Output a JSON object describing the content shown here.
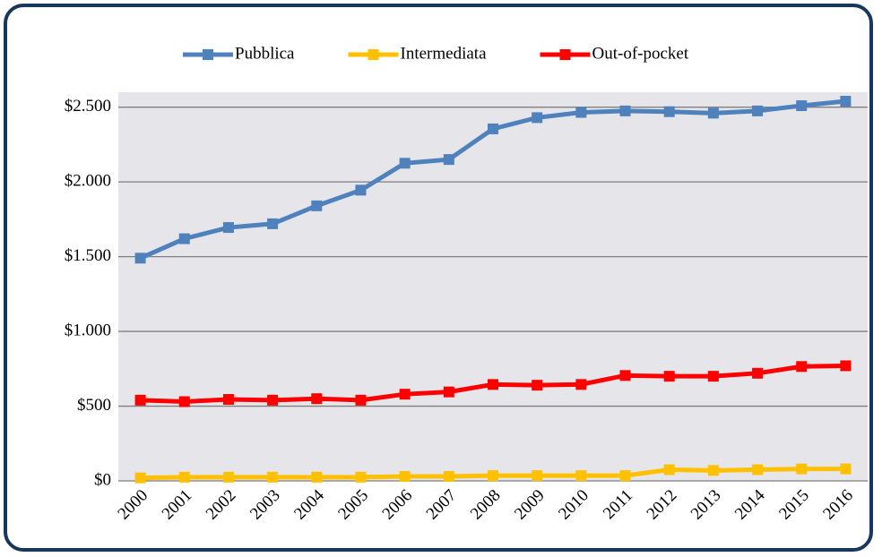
{
  "chart_data": {
    "type": "line",
    "categories": [
      "2000",
      "2001",
      "2002",
      "2003",
      "2004",
      "2005",
      "2006",
      "2007",
      "2008",
      "2009",
      "2010",
      "2011",
      "2012",
      "2013",
      "2014",
      "2015",
      "2016"
    ],
    "series": [
      {
        "name": "Pubblica",
        "color": "#4f81bd",
        "values": [
          1490,
          1620,
          1695,
          1720,
          1840,
          1945,
          2125,
          2150,
          2355,
          2430,
          2465,
          2475,
          2470,
          2460,
          2475,
          2510,
          2540
        ]
      },
      {
        "name": "Intermediata",
        "color": "#ffc000",
        "values": [
          20,
          25,
          25,
          25,
          25,
          25,
          30,
          30,
          35,
          35,
          35,
          35,
          75,
          70,
          75,
          80,
          80
        ]
      },
      {
        "name": "Out-of-pocket",
        "color": "#ff0000",
        "values": [
          540,
          530,
          545,
          540,
          550,
          540,
          580,
          595,
          645,
          640,
          645,
          705,
          700,
          700,
          720,
          765,
          770
        ]
      }
    ],
    "ylim": [
      0,
      2600
    ],
    "yticks": [
      {
        "value": 0,
        "label": "$0"
      },
      {
        "value": 500,
        "label": "$500"
      },
      {
        "value": 1000,
        "label": "$1.000"
      },
      {
        "value": 1500,
        "label": "$1.500"
      },
      {
        "value": 2000,
        "label": "$2.000"
      },
      {
        "value": 2500,
        "label": "$2.500"
      }
    ],
    "grid": true,
    "legend": "top"
  }
}
